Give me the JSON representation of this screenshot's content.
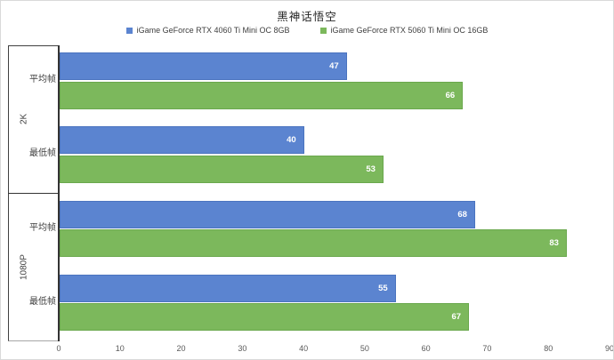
{
  "title": "黑神话悟空",
  "legend": [
    {
      "label": "iGame GeForce RTX 4060 Ti Mini OC 8GB",
      "color": "#5b84d0"
    },
    {
      "label": "iGame GeForce RTX 5060 Ti Mini OC 16GB",
      "color": "#7cb85c"
    }
  ],
  "chart_data": {
    "type": "bar",
    "orientation": "horizontal",
    "title": "黑神话悟空",
    "group_labels": [
      "2K",
      "1080P"
    ],
    "row_labels": [
      "平均帧",
      "最低帧",
      "平均帧",
      "最低帧"
    ],
    "categories": [
      "2K 平均帧",
      "2K 最低帧",
      "1080P 平均帧",
      "1080P 最低帧"
    ],
    "series": [
      {
        "name": "iGame GeForce RTX 4060 Ti Mini OC 8GB",
        "color": "#5b84d0",
        "values": [
          47,
          40,
          68,
          55
        ]
      },
      {
        "name": "iGame GeForce RTX 5060 Ti Mini OC 16GB",
        "color": "#7cb85c",
        "values": [
          66,
          53,
          83,
          67
        ]
      }
    ],
    "xlabel": "",
    "ylabel": "",
    "xlim": [
      0,
      90
    ],
    "x_ticks": [
      "0",
      "10",
      "20",
      "30",
      "40",
      "50",
      "60",
      "70",
      "80",
      "90"
    ],
    "gridlines": false,
    "legend_position": "top",
    "data_labels": "inside-end"
  }
}
